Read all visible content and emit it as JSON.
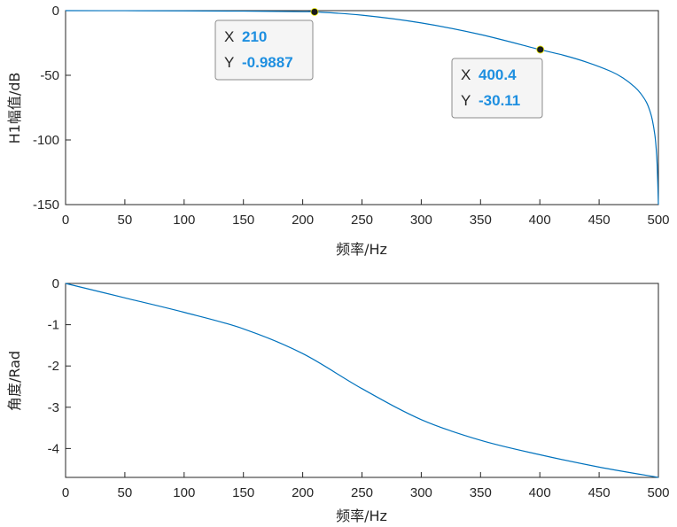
{
  "chart_data": [
    {
      "type": "line",
      "xlabel": "频率/Hz",
      "ylabel": "H1幅值/dB",
      "xlim": [
        0,
        500
      ],
      "ylim": [
        -150,
        0
      ],
      "xticks": [
        "0",
        "50",
        "100",
        "150",
        "200",
        "250",
        "300",
        "350",
        "400",
        "450",
        "500"
      ],
      "yticks": [
        "0",
        "-50",
        "-100",
        "-150"
      ],
      "series": [
        {
          "color": "#0072bd",
          "x": [
            0,
            50,
            100,
            150,
            200,
            210,
            250,
            300,
            350,
            400,
            420,
            440,
            460,
            470,
            480,
            485,
            490,
            493,
            495,
            497,
            498,
            499,
            500
          ],
          "y": [
            0,
            -0.05,
            -0.15,
            -0.4,
            -0.8,
            -0.9887,
            -3.5,
            -9.5,
            -18.5,
            -30.11,
            -34.5,
            -40,
            -47,
            -52,
            -59,
            -64,
            -71,
            -78,
            -85,
            -96,
            -105,
            -120,
            -150
          ]
        }
      ],
      "datatips": [
        {
          "x_label": "X",
          "x_value": "210",
          "y_label": "Y",
          "y_value": "-0.9887",
          "x": 210,
          "y": -0.9887
        },
        {
          "x_label": "X",
          "x_value": "400.4",
          "y_label": "Y",
          "y_value": "-30.11",
          "x": 400.4,
          "y": -30.11
        }
      ]
    },
    {
      "type": "line",
      "xlabel": "频率/Hz",
      "ylabel": "角度/Rad",
      "xlim": [
        0,
        500
      ],
      "ylim": [
        -4.7,
        0
      ],
      "xticks": [
        "0",
        "50",
        "100",
        "150",
        "200",
        "250",
        "300",
        "350",
        "400",
        "450",
        "500"
      ],
      "yticks": [
        "0",
        "-1",
        "-2",
        "-3",
        "-4"
      ],
      "series": [
        {
          "color": "#0072bd",
          "x": [
            0,
            50,
            100,
            150,
            200,
            250,
            300,
            350,
            400,
            450,
            500
          ],
          "y": [
            0,
            -0.35,
            -0.7,
            -1.1,
            -1.7,
            -2.55,
            -3.3,
            -3.8,
            -4.15,
            -4.45,
            -4.7
          ]
        }
      ]
    }
  ]
}
